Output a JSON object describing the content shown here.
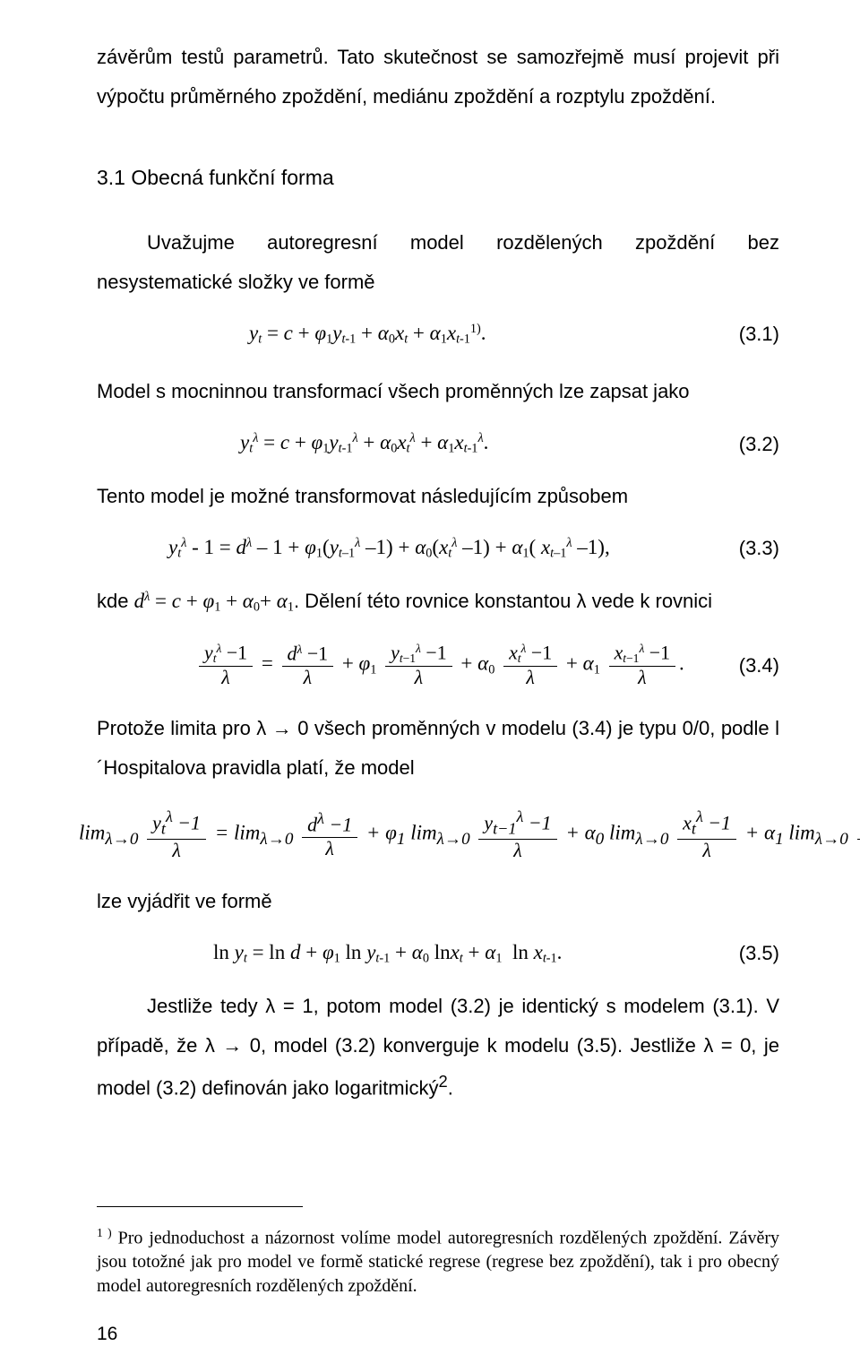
{
  "intro_para": "závěrům testů parametrů. Tato skutečnost se samozřejmě musí projevit při výpočtu průměrného zpoždění, mediánu zpoždění a rozptylu zpoždění.",
  "heading": "3.1 Obecná funkční forma",
  "p_after_heading_1": "Uvažujme autoregresní model rozdělených zpoždění bez nesystematické složky ve formě",
  "eq31_num": "(3.1)",
  "p2": "Model s mocninnou transformací všech proměnných lze zapsat jako",
  "eq32_num": "(3.2)",
  "p3": "Tento model je možné transformovat následujícím způsobem",
  "eq33_num": "(3.3)",
  "p4_pre": "kde ",
  "p4_post": ". Dělení této rovnice konstantou λ vede k rovnici",
  "eq34_num": "(3.4)",
  "p5": "Protože limita pro λ → 0 všech proměnných v modelu (3.4) je typu 0/0, podle l´Hospitalova pravidla platí, že model",
  "p6": "lze vyjádřit ve formě",
  "eq35_num": "(3.5)",
  "p7": "Jestliže tedy λ = 1, potom model (3.2) je identický s modelem (3.1). V případě, že λ → 0, model (3.2) konverguje k modelu (3.5). Jestliže λ = 0, je model (3.2) definován jako logaritmický",
  "p7_sup": "2",
  "p7_tail": ".",
  "footnote_marker": "1 )",
  "footnote_text": " Pro jednoduchost a názornost volíme model autoregresních rozdělených zpoždění. Závěry jsou totožné jak pro model ve formě statické regrese (regrese bez zpoždění), tak i pro obecný model autoregresních rozdělených zpoždění.",
  "page_number": "16",
  "math": {
    "g": {
      "phi": "φ",
      "phi1": "φ₁",
      "alpha": "α",
      "lambda": "λ"
    },
    "eq31": "y_t = c + φ_1 y_{t-1} + α_0 x_t + α_1 x_{t-1}^{1)}.",
    "eq32": "y_t^λ = c + φ_1 y_{t-1}^λ + α_0 x_t^λ + α_1 x_{t-1}^λ.",
    "eq33": "y_t^λ - 1 = d^λ - 1 + φ_1(y_{t-1}^λ - 1) + α_0(x_t^λ - 1) + α_1(x_{t-1}^λ - 1),",
    "p4_math": "d^λ = c + φ_1 + α_0 + α_1",
    "eq35": "ln y_t = ln d + φ_1 ln y_{t-1} + α_0 ln x_t + α_1 ln x_{t-1}."
  }
}
